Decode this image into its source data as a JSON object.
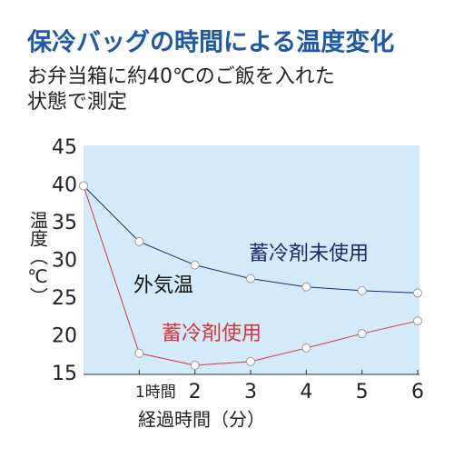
{
  "chart_data": {
    "type": "line",
    "title": "保冷バッグの時間による温度変化",
    "subtitle": [
      "お弁当箱に約40℃のご飯を入れた",
      "状態で測定"
    ],
    "x": [
      0,
      1,
      2,
      3,
      4,
      5,
      6
    ],
    "series": [
      {
        "name": "蓄冷剤未使用",
        "color": "#1b2a6b",
        "values": [
          40,
          32.6,
          29.5,
          27.7,
          26.6,
          26.1,
          25.8
        ]
      },
      {
        "name": "蓄冷剤使用",
        "color": "#d8323c",
        "values": [
          40,
          17.8,
          16.2,
          16.7,
          18.5,
          20.4,
          22.1
        ]
      }
    ],
    "annotations": [
      "外気温"
    ],
    "xlabel": "経過時間（分）",
    "ylabel": "温度（℃）",
    "xlim": [
      0,
      6
    ],
    "xticks": [
      {
        "value": 1,
        "label": "1時間"
      },
      2,
      3,
      4,
      5,
      6
    ],
    "ylim": [
      15,
      45
    ],
    "yticks": [
      15,
      20,
      25,
      30,
      35,
      40,
      45
    ],
    "plot_background": "#d3ebf8"
  }
}
